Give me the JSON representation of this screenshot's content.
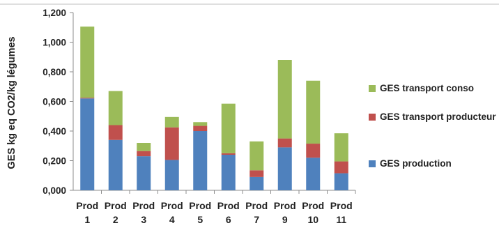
{
  "chart_data": {
    "type": "bar",
    "stacked": true,
    "ylabel": "GES kg eq  CO2/kg légumes",
    "ylim": [
      0,
      1.2
    ],
    "yticks": [
      0,
      0.2,
      0.4,
      0.6,
      0.8,
      1.0,
      1.2
    ],
    "ytick_labels": [
      "0,000",
      "0,200",
      "0,400",
      "0,600",
      "0,800",
      "1,000",
      "1,200"
    ],
    "categories": [
      [
        "Prod",
        "1"
      ],
      [
        "Prod",
        "2"
      ],
      [
        "Prod",
        "3"
      ],
      [
        "Prod",
        "4"
      ],
      [
        "Prod",
        "5"
      ],
      [
        "Prod",
        "6"
      ],
      [
        "Prod",
        "7"
      ],
      [
        "Prod",
        "9"
      ],
      [
        "Prod",
        "10"
      ],
      [
        "Prod",
        "11"
      ]
    ],
    "series": [
      {
        "name": "GES production",
        "color": "#4f81bd",
        "values": [
          0.62,
          0.34,
          0.23,
          0.205,
          0.4,
          0.24,
          0.09,
          0.29,
          0.22,
          0.115
        ]
      },
      {
        "name": "GES transport producteur",
        "color": "#c0504d",
        "values": [
          0.005,
          0.1,
          0.035,
          0.22,
          0.035,
          0.01,
          0.045,
          0.06,
          0.095,
          0.08
        ]
      },
      {
        "name": "GES transport conso",
        "color": "#9bbb59",
        "values": [
          0.48,
          0.23,
          0.055,
          0.07,
          0.025,
          0.335,
          0.195,
          0.53,
          0.425,
          0.19
        ]
      }
    ],
    "legend_order": [
      "GES transport conso",
      "GES transport producteur",
      "GES production"
    ],
    "legend_position": "right",
    "grid": false
  }
}
